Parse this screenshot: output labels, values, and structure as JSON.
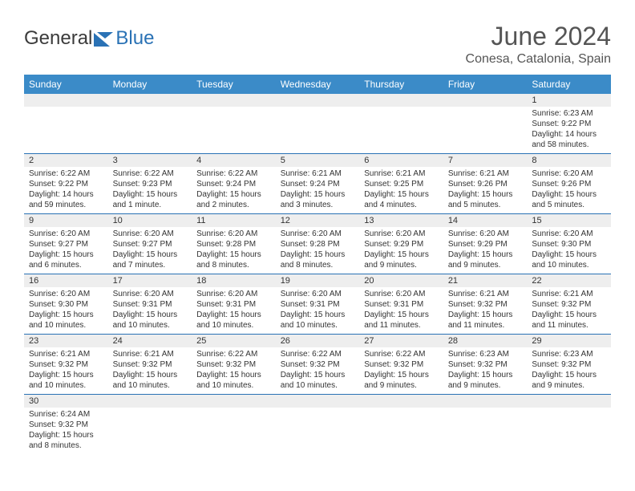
{
  "logo": {
    "text1": "General",
    "text2": "Blue"
  },
  "title": "June 2024",
  "location": "Conesa, Catalonia, Spain",
  "colors": {
    "header_bg": "#3b8bc8",
    "header_text": "#ffffff",
    "daynum_bg": "#eeeeee",
    "row_border": "#2a72b5",
    "title_text": "#555555",
    "body_text": "#333333"
  },
  "dayNames": [
    "Sunday",
    "Monday",
    "Tuesday",
    "Wednesday",
    "Thursday",
    "Friday",
    "Saturday"
  ],
  "firstWeekday": 6,
  "daysInMonth": 30,
  "days": {
    "1": {
      "sunrise": "6:23 AM",
      "sunset": "9:22 PM",
      "daylight": "14 hours and 58 minutes."
    },
    "2": {
      "sunrise": "6:22 AM",
      "sunset": "9:22 PM",
      "daylight": "14 hours and 59 minutes."
    },
    "3": {
      "sunrise": "6:22 AM",
      "sunset": "9:23 PM",
      "daylight": "15 hours and 1 minute."
    },
    "4": {
      "sunrise": "6:22 AM",
      "sunset": "9:24 PM",
      "daylight": "15 hours and 2 minutes."
    },
    "5": {
      "sunrise": "6:21 AM",
      "sunset": "9:24 PM",
      "daylight": "15 hours and 3 minutes."
    },
    "6": {
      "sunrise": "6:21 AM",
      "sunset": "9:25 PM",
      "daylight": "15 hours and 4 minutes."
    },
    "7": {
      "sunrise": "6:21 AM",
      "sunset": "9:26 PM",
      "daylight": "15 hours and 5 minutes."
    },
    "8": {
      "sunrise": "6:20 AM",
      "sunset": "9:26 PM",
      "daylight": "15 hours and 5 minutes."
    },
    "9": {
      "sunrise": "6:20 AM",
      "sunset": "9:27 PM",
      "daylight": "15 hours and 6 minutes."
    },
    "10": {
      "sunrise": "6:20 AM",
      "sunset": "9:27 PM",
      "daylight": "15 hours and 7 minutes."
    },
    "11": {
      "sunrise": "6:20 AM",
      "sunset": "9:28 PM",
      "daylight": "15 hours and 8 minutes."
    },
    "12": {
      "sunrise": "6:20 AM",
      "sunset": "9:28 PM",
      "daylight": "15 hours and 8 minutes."
    },
    "13": {
      "sunrise": "6:20 AM",
      "sunset": "9:29 PM",
      "daylight": "15 hours and 9 minutes."
    },
    "14": {
      "sunrise": "6:20 AM",
      "sunset": "9:29 PM",
      "daylight": "15 hours and 9 minutes."
    },
    "15": {
      "sunrise": "6:20 AM",
      "sunset": "9:30 PM",
      "daylight": "15 hours and 10 minutes."
    },
    "16": {
      "sunrise": "6:20 AM",
      "sunset": "9:30 PM",
      "daylight": "15 hours and 10 minutes."
    },
    "17": {
      "sunrise": "6:20 AM",
      "sunset": "9:31 PM",
      "daylight": "15 hours and 10 minutes."
    },
    "18": {
      "sunrise": "6:20 AM",
      "sunset": "9:31 PM",
      "daylight": "15 hours and 10 minutes."
    },
    "19": {
      "sunrise": "6:20 AM",
      "sunset": "9:31 PM",
      "daylight": "15 hours and 10 minutes."
    },
    "20": {
      "sunrise": "6:20 AM",
      "sunset": "9:31 PM",
      "daylight": "15 hours and 11 minutes."
    },
    "21": {
      "sunrise": "6:21 AM",
      "sunset": "9:32 PM",
      "daylight": "15 hours and 11 minutes."
    },
    "22": {
      "sunrise": "6:21 AM",
      "sunset": "9:32 PM",
      "daylight": "15 hours and 11 minutes."
    },
    "23": {
      "sunrise": "6:21 AM",
      "sunset": "9:32 PM",
      "daylight": "15 hours and 10 minutes."
    },
    "24": {
      "sunrise": "6:21 AM",
      "sunset": "9:32 PM",
      "daylight": "15 hours and 10 minutes."
    },
    "25": {
      "sunrise": "6:22 AM",
      "sunset": "9:32 PM",
      "daylight": "15 hours and 10 minutes."
    },
    "26": {
      "sunrise": "6:22 AM",
      "sunset": "9:32 PM",
      "daylight": "15 hours and 10 minutes."
    },
    "27": {
      "sunrise": "6:22 AM",
      "sunset": "9:32 PM",
      "daylight": "15 hours and 9 minutes."
    },
    "28": {
      "sunrise": "6:23 AM",
      "sunset": "9:32 PM",
      "daylight": "15 hours and 9 minutes."
    },
    "29": {
      "sunrise": "6:23 AM",
      "sunset": "9:32 PM",
      "daylight": "15 hours and 9 minutes."
    },
    "30": {
      "sunrise": "6:24 AM",
      "sunset": "9:32 PM",
      "daylight": "15 hours and 8 minutes."
    }
  },
  "labels": {
    "sunrise": "Sunrise: ",
    "sunset": "Sunset: ",
    "daylight": "Daylight: "
  }
}
